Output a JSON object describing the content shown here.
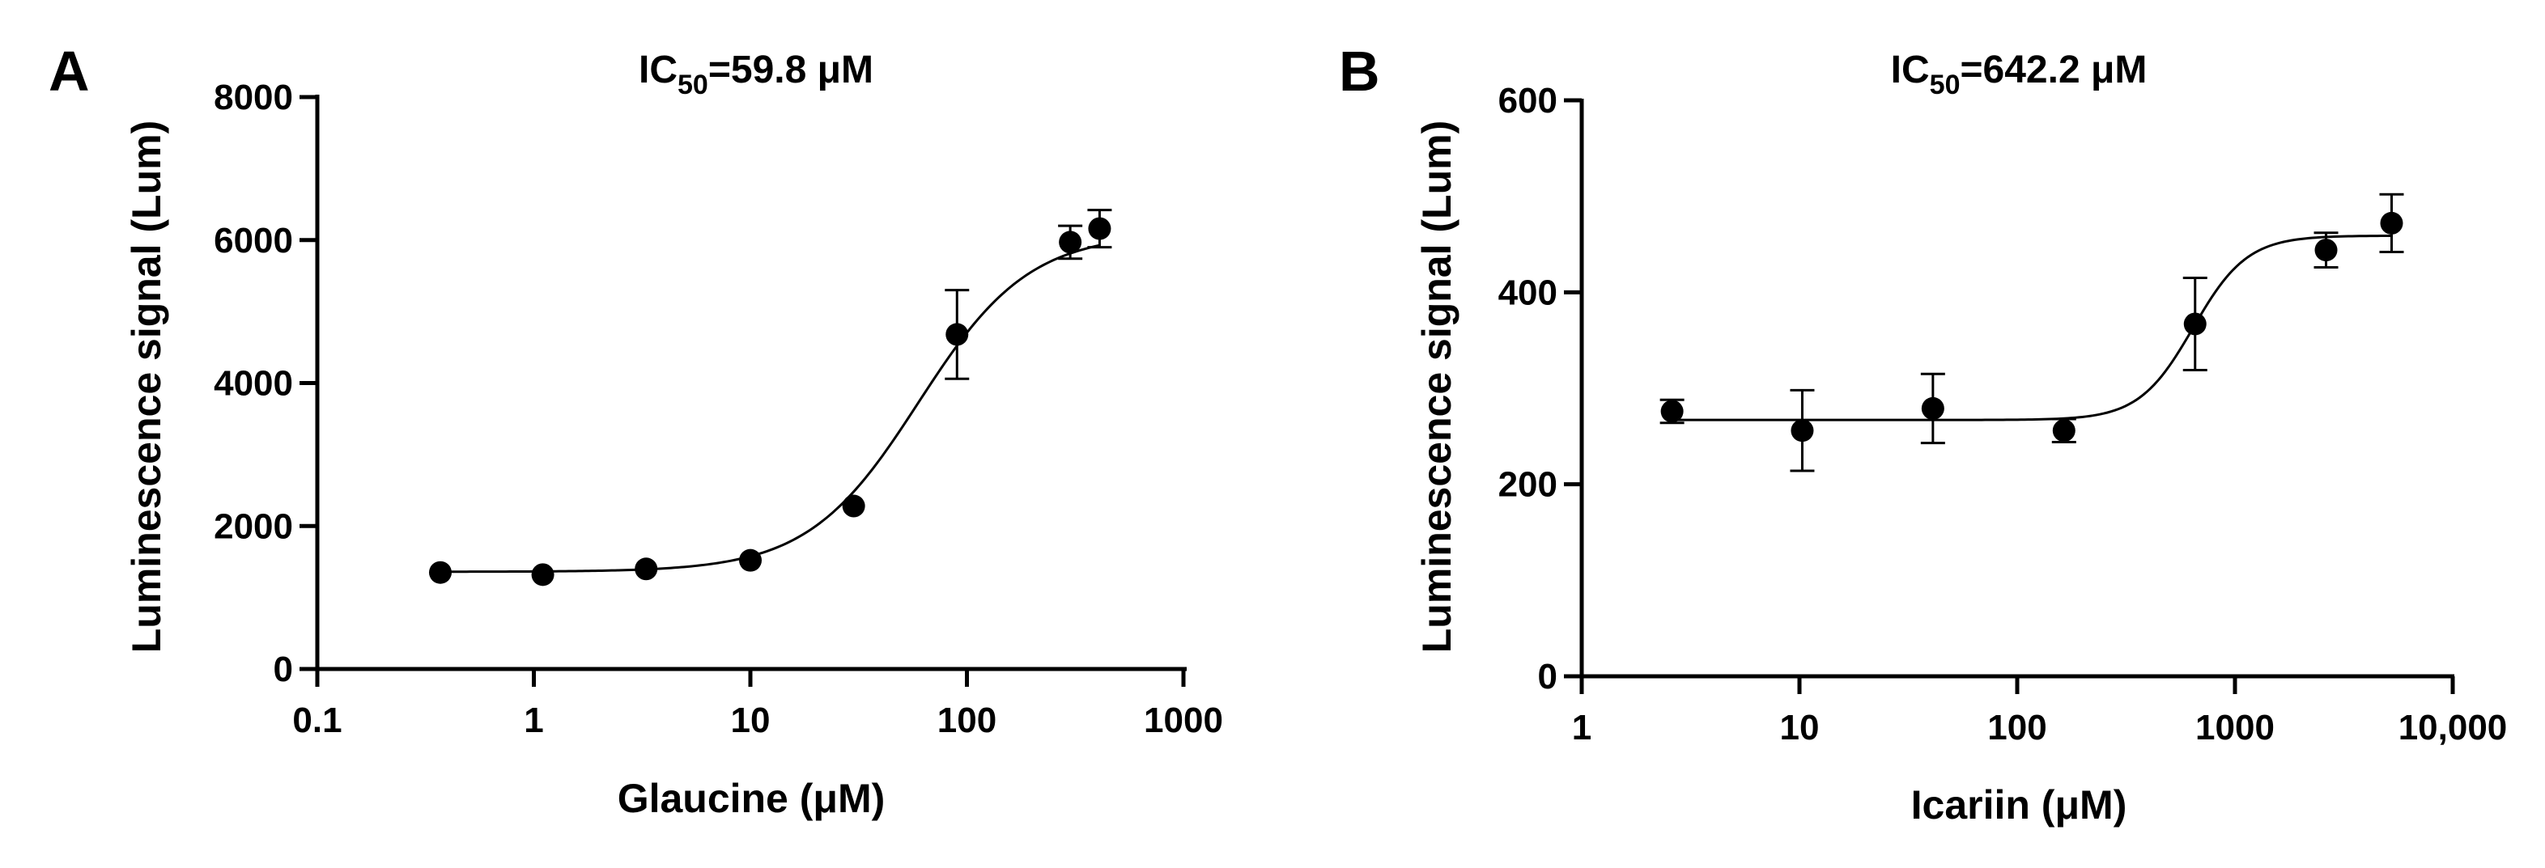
{
  "chart_data": [
    {
      "panel_label": "A",
      "type": "scatter",
      "title_prefix": "IC",
      "title_subscript": "50",
      "title_suffix": "=59.8 μM",
      "xlabel": "Glaucine (μM)",
      "ylabel": "Luminescence signal (Lum)",
      "xscale": "log",
      "xlim": [
        0.1,
        1000
      ],
      "ylim": [
        0,
        8000
      ],
      "xticks": [
        0.1,
        1,
        10,
        100,
        1000
      ],
      "xtick_labels": [
        "0.1",
        "1",
        "10",
        "100",
        "1000"
      ],
      "yticks": [
        0,
        2000,
        4000,
        6000,
        8000
      ],
      "ytick_labels": [
        "0",
        "2000",
        "4000",
        "6000",
        "8000"
      ],
      "series": [
        {
          "name": "Glaucine",
          "x": [
            0.37,
            1.1,
            3.3,
            10,
            30,
            90,
            300,
            410
          ],
          "y": [
            1350,
            1320,
            1400,
            1520,
            2280,
            4680,
            5970,
            6160
          ],
          "error": [
            0,
            0,
            0,
            0,
            0,
            620,
            230,
            260
          ]
        }
      ],
      "fit": {
        "bottom": 1360,
        "top": 6100,
        "ic50": 59.8,
        "hill": 1.7
      }
    },
    {
      "panel_label": "B",
      "type": "scatter",
      "title_prefix": "IC",
      "title_subscript": "50",
      "title_suffix": "=642.2 μM",
      "xlabel": "Icariin (μM)",
      "ylabel": "Luminescence signal (Lum)",
      "xscale": "log",
      "xlim": [
        1,
        10000
      ],
      "ylim": [
        0,
        600
      ],
      "xticks": [
        1,
        10,
        100,
        1000,
        10000
      ],
      "xtick_labels": [
        "1",
        "10",
        "100",
        "1000",
        "10,000"
      ],
      "yticks": [
        0,
        200,
        400,
        600
      ],
      "ytick_labels": [
        "0",
        "200",
        "400",
        "600"
      ],
      "series": [
        {
          "name": "Icariin",
          "x": [
            2.6,
            10.3,
            41,
            164,
            656,
            2620,
            5240
          ],
          "y": [
            276,
            256,
            279,
            256,
            367,
            444,
            472
          ],
          "error": [
            12,
            42,
            36,
            12,
            48,
            18,
            30
          ]
        }
      ],
      "fit": {
        "bottom": 267,
        "top": 459,
        "ic50": 642.2,
        "hill": 3.5
      }
    }
  ]
}
